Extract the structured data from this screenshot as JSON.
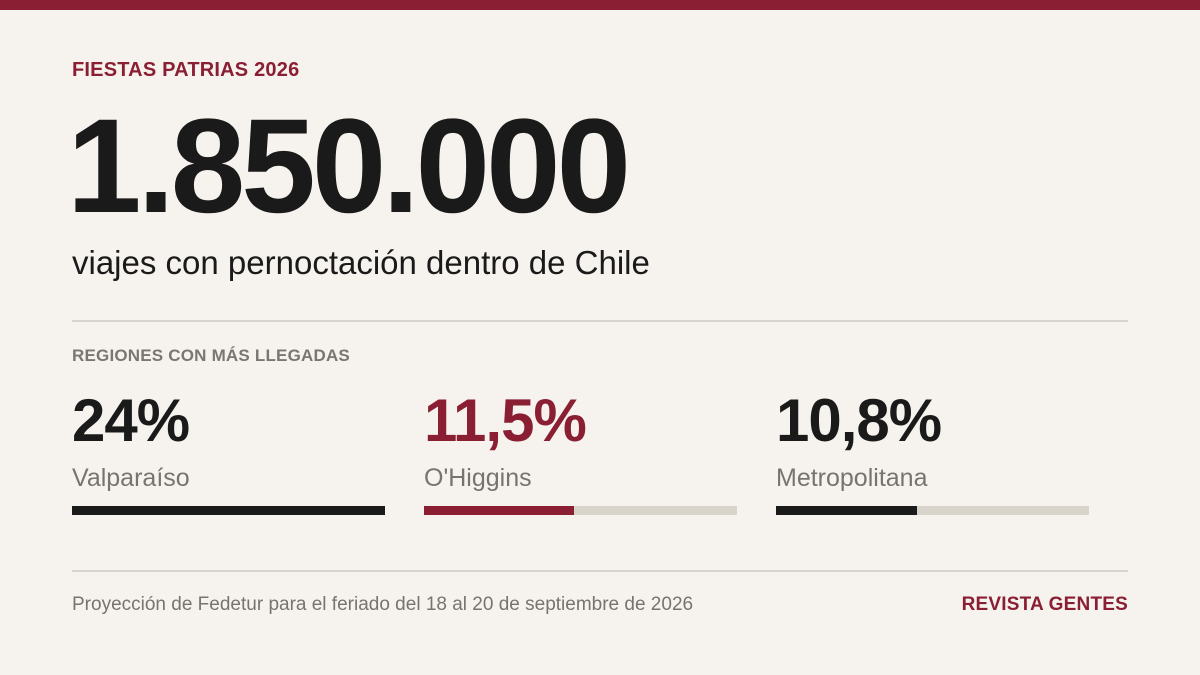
{
  "header": {
    "kicker": "FIESTAS PATRIAS 2026",
    "big_number": "1.850.000",
    "subhead": "viajes con pernoctación dentro de Chile"
  },
  "regions": {
    "section_label": "REGIONES CON MÁS LLEGADAS",
    "items": [
      {
        "value": "24%",
        "name": "Valparaíso",
        "fraction": 1.0,
        "color": "#1b1a1a"
      },
      {
        "value": "11,5%",
        "name": "O'Higgins",
        "fraction": 0.479,
        "color": "#8a1f33"
      },
      {
        "value": "10,8%",
        "name": "Metropolitana",
        "fraction": 0.45,
        "color": "#1b1a1a"
      }
    ]
  },
  "footer": {
    "note": "Proyección de Fedetur para el feriado del 18 al 20 de septiembre de 2026",
    "brand": "REVISTA GENTES"
  },
  "colors": {
    "accent": "#8a1f33",
    "background": "#f6f3ee",
    "text": "#1b1a1a",
    "muted": "#77736e",
    "track": "#d8d4cb"
  }
}
